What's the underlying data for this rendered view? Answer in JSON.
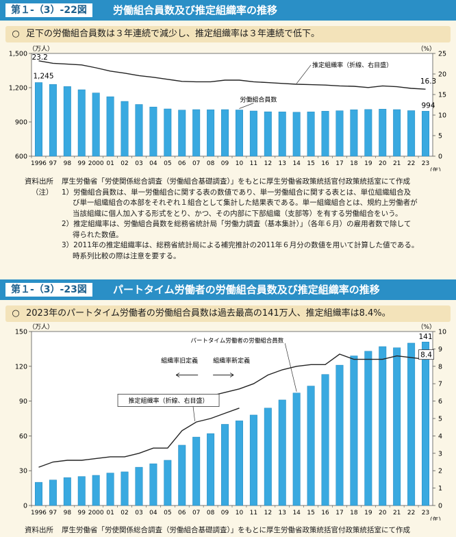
{
  "fig1": {
    "number": "第１-（3）-22図",
    "title": "労働組合員数及び推定組織率の推移",
    "summary_mark": "○",
    "summary": "足下の労働組合員数は３年連続で減少し、推定組織率は３年連続で低下。",
    "notes": {
      "source_label": "資料出所",
      "source": "厚生労働省「労使関係総合調査（労働組合基礎調査）」をもとに厚生労働省政策統括官付政策統括室にて作成",
      "note_label": "（注）",
      "note1": "1）労働組合員数は、単一労働組合に関する表の数値であり、単一労働組合に関する表とは、単位組織組合及",
      "note1b": "び単一組織組合の本部をそれぞれ１組合として集計した結果表である。単一組織組合とは、規約上労働者が",
      "note1c": "当該組織に個人加入する形式をとり、かつ、その内部に下部組織（支部等）を有する労働組合をいう。",
      "note2": "2）推定組織率は、労働組合員数を総務省統計局「労働力調査（基本集計）」（各年６月）の雇用者数で除して",
      "note2b": "得られた数値。",
      "note3": "3）2011年の推定組織率は、総務省統計局による補完推計の2011年６月分の数値を用いて計算した値である。",
      "note3b": "時系列比較の際は注意を要する。"
    }
  },
  "fig2": {
    "number": "第１-（3）-23図",
    "title": "パートタイム労働者の労働組合員数及び推定組織率の推移",
    "summary_mark": "○",
    "summary": "2023年のパートタイム労働者の労働組合員数は過去最高の141万人、推定組織率は8.4%。",
    "notes": {
      "source_label": "資料出所",
      "source": "厚生労働省「労使関係総合調査（労働組合基礎調査）」をもとに厚生労働省政策統括官付政策統括室にて作成"
    }
  },
  "chart_data": [
    {
      "type": "bar",
      "categories": [
        "1996",
        "97",
        "98",
        "99",
        "2000",
        "01",
        "02",
        "03",
        "04",
        "05",
        "06",
        "07",
        "08",
        "09",
        "10",
        "11",
        "12",
        "13",
        "14",
        "15",
        "16",
        "17",
        "18",
        "19",
        "20",
        "21",
        "22",
        "23"
      ],
      "x_unit": "（年）",
      "series": [
        {
          "name": "労働組合員数",
          "axis": "left",
          "type": "bar",
          "values": [
            1245,
            1229,
            1210,
            1182,
            1154,
            1121,
            1080,
            1053,
            1031,
            1014,
            1004,
            1008,
            1007,
            1008,
            1005,
            996,
            989,
            988,
            985,
            988,
            994,
            998,
            1007,
            1009,
            1012,
            1008,
            999,
            994
          ]
        },
        {
          "name": "推定組織率（折線、右目盛）",
          "axis": "right",
          "type": "line",
          "values": [
            23.2,
            22.6,
            22.4,
            22.2,
            21.5,
            20.7,
            20.2,
            19.6,
            19.2,
            18.7,
            18.2,
            18.1,
            18.1,
            18.5,
            18.5,
            18.1,
            17.9,
            17.7,
            17.5,
            17.4,
            17.3,
            17.1,
            17.0,
            16.7,
            17.1,
            16.9,
            16.5,
            16.3
          ]
        }
      ],
      "left_axis": {
        "unit": "（万人）",
        "ylim": [
          600,
          1500
        ],
        "ticks": [
          600,
          900,
          1200,
          1500
        ]
      },
      "right_axis": {
        "unit": "（%）",
        "ylim": [
          0,
          25
        ],
        "ticks": [
          0,
          5,
          10,
          15,
          20,
          25
        ]
      },
      "annotations": {
        "first_bar": "1,245",
        "last_bar": "994",
        "first_line": "23.2",
        "last_line": "16.3"
      },
      "colors": {
        "bar": "#39a9e0",
        "line": "#222222"
      }
    },
    {
      "type": "bar",
      "categories": [
        "1996",
        "97",
        "98",
        "99",
        "2000",
        "01",
        "02",
        "03",
        "04",
        "05",
        "06",
        "07",
        "08",
        "09",
        "10",
        "11",
        "12",
        "13",
        "14",
        "15",
        "16",
        "17",
        "18",
        "19",
        "20",
        "21",
        "22",
        "23"
      ],
      "x_unit": "（年）",
      "series": [
        {
          "name": "パートタイム労働者の労働組合員数",
          "axis": "left",
          "type": "bar",
          "values": [
            20,
            22,
            24,
            25,
            26,
            28,
            29,
            33,
            36,
            39,
            52,
            59,
            62,
            70,
            73,
            78,
            84,
            91,
            97,
            103,
            113,
            121,
            129,
            133,
            137,
            136,
            140,
            141
          ]
        },
        {
          "name": "推定組織率（折線、右目盛）",
          "axis": "right",
          "type": "line",
          "segments": [
            [
              0,
              14
            ],
            [
              15,
              27
            ]
          ],
          "values": [
            2.2,
            2.5,
            2.6,
            2.6,
            2.7,
            2.8,
            2.8,
            3.0,
            3.3,
            3.3,
            4.3,
            4.8,
            5.0,
            5.3,
            5.6,
            null,
            null,
            null,
            null,
            null,
            null,
            null,
            null,
            null,
            null,
            null,
            null,
            null
          ],
          "values_new": [
            null,
            null,
            null,
            null,
            null,
            null,
            null,
            null,
            null,
            null,
            null,
            null,
            6.3,
            6.5,
            6.7,
            7.0,
            7.5,
            7.8,
            8.0,
            8.1,
            8.1,
            8.7,
            8.4,
            8.4,
            8.4,
            8.6,
            8.5,
            8.4
          ]
        }
      ],
      "left_axis": {
        "unit": "（万人）",
        "ylim": [
          0,
          150
        ],
        "ticks": [
          0,
          30,
          60,
          90,
          120,
          150
        ]
      },
      "right_axis": {
        "unit": "（%）",
        "ylim": [
          0,
          10
        ],
        "ticks": [
          0,
          1,
          2,
          3,
          4,
          5,
          6,
          7,
          8,
          9,
          10
        ]
      },
      "annotations": {
        "last_bar": "141",
        "last_line": "8.4",
        "old_def": "組織率旧定義",
        "new_def": "組織率新定義",
        "line_label": "推定組織率（折線、右目盛）"
      },
      "colors": {
        "bar": "#39a9e0",
        "line": "#222222"
      }
    }
  ]
}
